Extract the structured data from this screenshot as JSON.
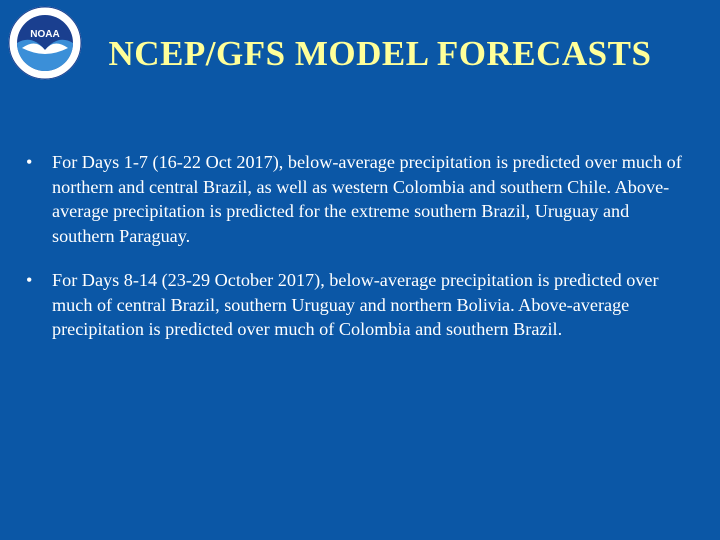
{
  "header": {
    "title": "NCEP/GFS MODEL FORECASTS"
  },
  "logo": {
    "label": "NOAA"
  },
  "bullets": [
    "For Days 1-7 (16-22 Oct 2017), below-average precipitation is predicted over much of northern and central Brazil, as well as western Colombia and southern Chile. Above-average precipitation is predicted for the extreme southern Brazil, Uruguay and southern Paraguay.",
    "For Days 8-14 (23-29 October 2017), below-average precipitation is predicted over much of central Brazil, southern Uruguay and northern Bolivia. Above-average precipitation is predicted over much of Colombia and southern Brazil."
  ]
}
